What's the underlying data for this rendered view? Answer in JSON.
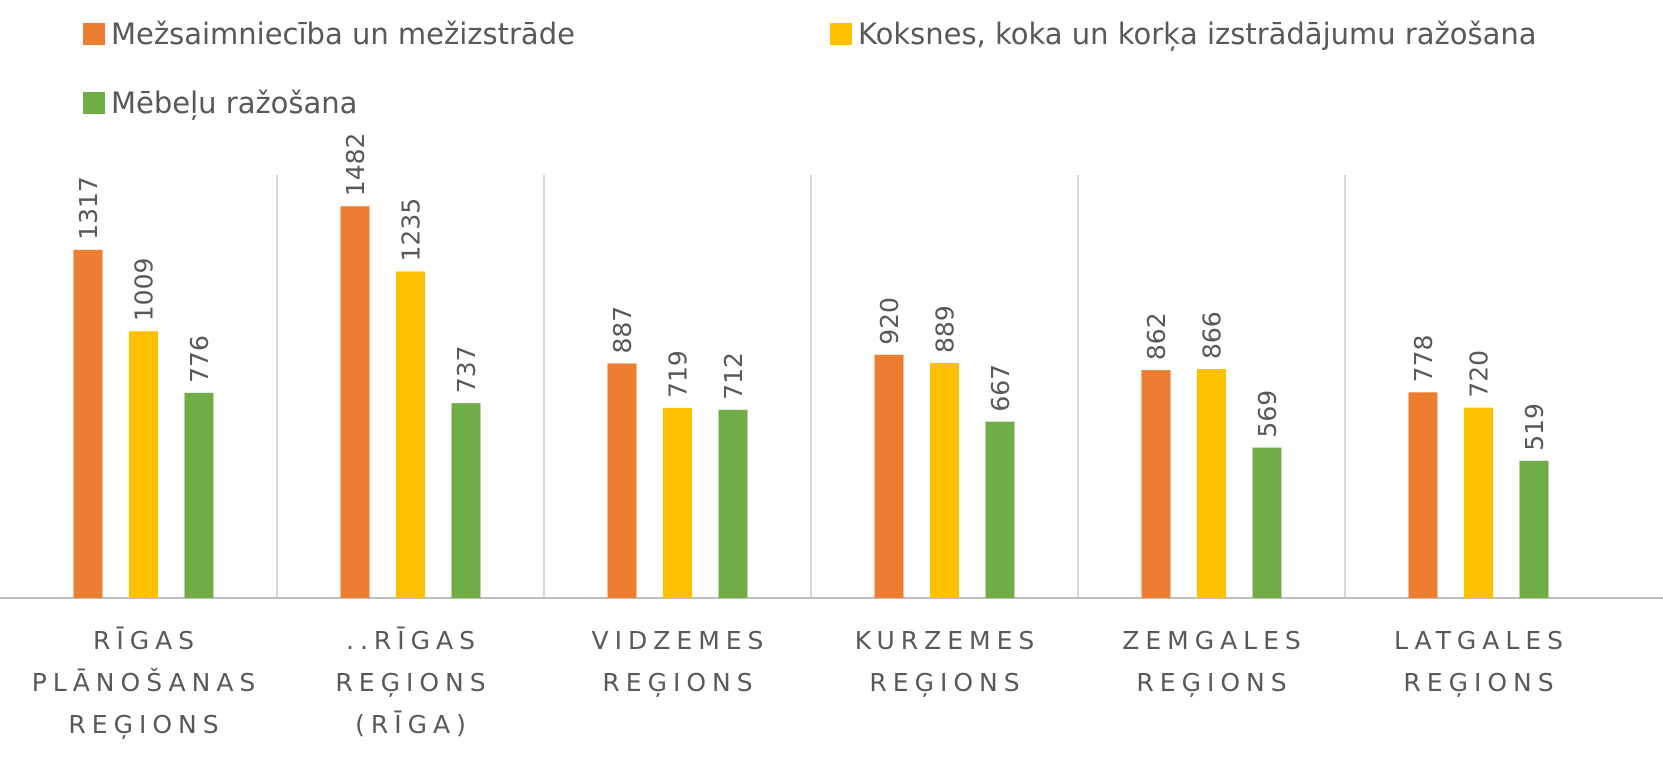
{
  "chart_data": {
    "type": "bar",
    "categories": [
      "RĪGAS PLĀNOŠANAS REĢIONS",
      "..RĪGAS REĢIONS (RĪGA)",
      "VIDZEMES REĢIONS",
      "KURZEMES REĢIONS",
      "ZEMGALES REĢIONS",
      "LATGALES REĢIONS"
    ],
    "series": [
      {
        "name": "Mežsaimniecība un mežizstrāde",
        "color": "#ED7D31",
        "values": [
          1317,
          1482,
          887,
          920,
          862,
          778
        ]
      },
      {
        "name": "Koksnes, koka un korķa izstrādājumu ražošana",
        "color": "#FFC000",
        "values": [
          1009,
          1235,
          719,
          889,
          866,
          720
        ]
      },
      {
        "name": "Mēbeļu ražošana",
        "color": "#70AD47",
        "values": [
          776,
          737,
          712,
          667,
          569,
          519
        ]
      }
    ],
    "ylim": [
      0,
      1600
    ]
  }
}
